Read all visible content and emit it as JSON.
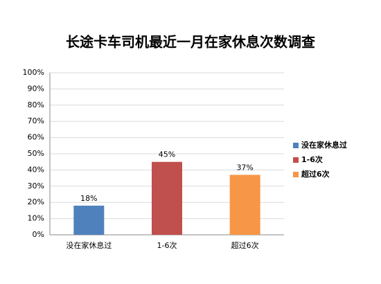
{
  "chart_data": {
    "type": "bar",
    "title": "长途卡车司机最近一月在家休息次数调查",
    "categories": [
      "没在家休息过",
      "1-6次",
      "超过6次"
    ],
    "values": [
      18,
      45,
      37
    ],
    "value_labels": [
      "18%",
      "45%",
      "37%"
    ],
    "colors": [
      "#4f81bd",
      "#c0504d",
      "#f79646"
    ],
    "ylim": [
      0,
      100
    ],
    "yticks": [
      {
        "value": 0,
        "label": "0%"
      },
      {
        "value": 10,
        "label": "10%"
      },
      {
        "value": 20,
        "label": "20%"
      },
      {
        "value": 30,
        "label": "30%"
      },
      {
        "value": 40,
        "label": "40%"
      },
      {
        "value": 50,
        "label": "50%"
      },
      {
        "value": 60,
        "label": "60%"
      },
      {
        "value": 70,
        "label": "70%"
      },
      {
        "value": 80,
        "label": "80%"
      },
      {
        "value": 90,
        "label": "90%"
      },
      {
        "value": 100,
        "label": "100%"
      }
    ],
    "grid": true,
    "legend": "right"
  }
}
